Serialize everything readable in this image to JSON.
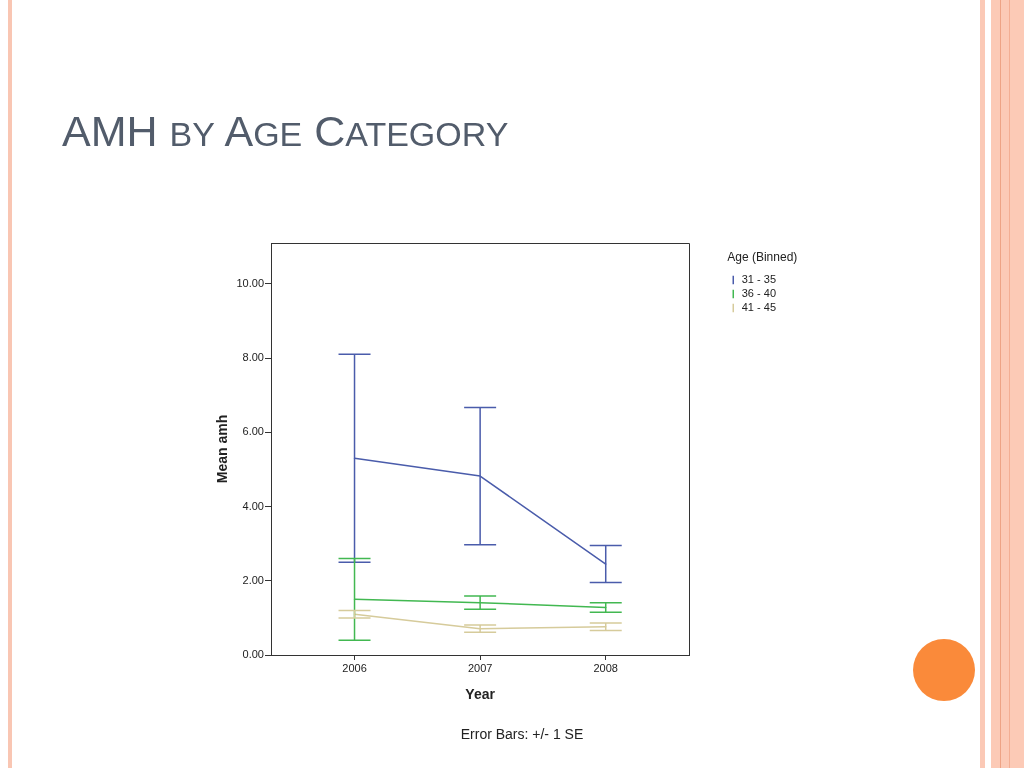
{
  "chart_data": {
    "type": "line",
    "title": "AMH by Age Category",
    "xlabel": "Year",
    "ylabel": "Mean amh",
    "legend_title": "Age (Binned)",
    "annotations": [
      "Error Bars: +/- 1 SE"
    ],
    "categories": [
      "2006",
      "2007",
      "2008"
    ],
    "series": [
      {
        "name": "31 - 35",
        "color": "#4a5cab",
        "values": [
          5.3,
          4.82,
          2.45
        ],
        "errors": [
          2.8,
          1.85,
          0.5
        ]
      },
      {
        "name": "36 - 40",
        "color": "#42b851",
        "values": [
          1.5,
          1.41,
          1.28
        ],
        "errors": [
          1.1,
          0.18,
          0.13
        ]
      },
      {
        "name": "41 - 45",
        "color": "#d6cb9b",
        "values": [
          1.1,
          0.71,
          0.76
        ],
        "errors": [
          0.1,
          0.1,
          0.1
        ]
      }
    ],
    "ylim": [
      0,
      11.1
    ],
    "yticks": [
      {
        "value": 0,
        "label": "0.00"
      },
      {
        "value": 2,
        "label": "2.00"
      },
      {
        "value": 4,
        "label": "4.00"
      },
      {
        "value": 6,
        "label": "6.00"
      },
      {
        "value": 8,
        "label": "8.00"
      },
      {
        "value": 10,
        "label": "10.00"
      }
    ],
    "grid": false,
    "legend": "top right",
    "marker": "none",
    "line_style": "solid"
  }
}
